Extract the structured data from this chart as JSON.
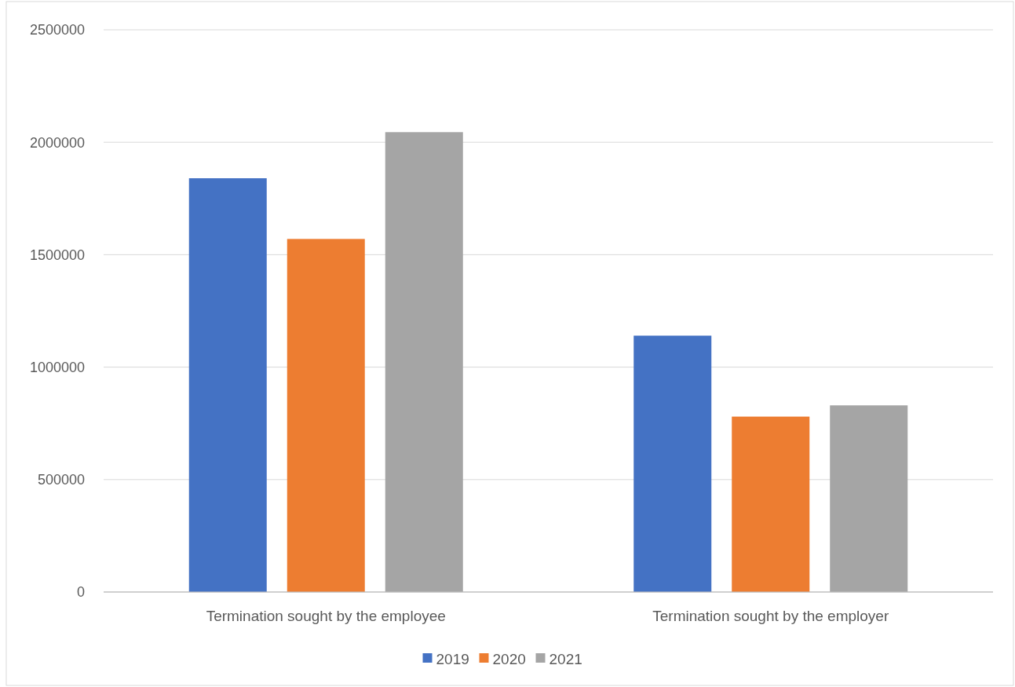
{
  "chart_data": {
    "type": "bar",
    "categories": [
      "Termination sought by the employee",
      "Termination sought by the employer"
    ],
    "series": [
      {
        "name": "2019",
        "color": "#4472c4",
        "values": [
          1840000,
          1140000
        ]
      },
      {
        "name": "2020",
        "color": "#ed7d31",
        "values": [
          1570000,
          780000
        ]
      },
      {
        "name": "2021",
        "color": "#a5a5a5",
        "values": [
          2045000,
          830000
        ]
      }
    ],
    "ylim": [
      0,
      2500000
    ],
    "yticks": [
      0,
      500000,
      1000000,
      1500000,
      2000000,
      2500000
    ],
    "grid": "y",
    "legend": "bottom"
  }
}
